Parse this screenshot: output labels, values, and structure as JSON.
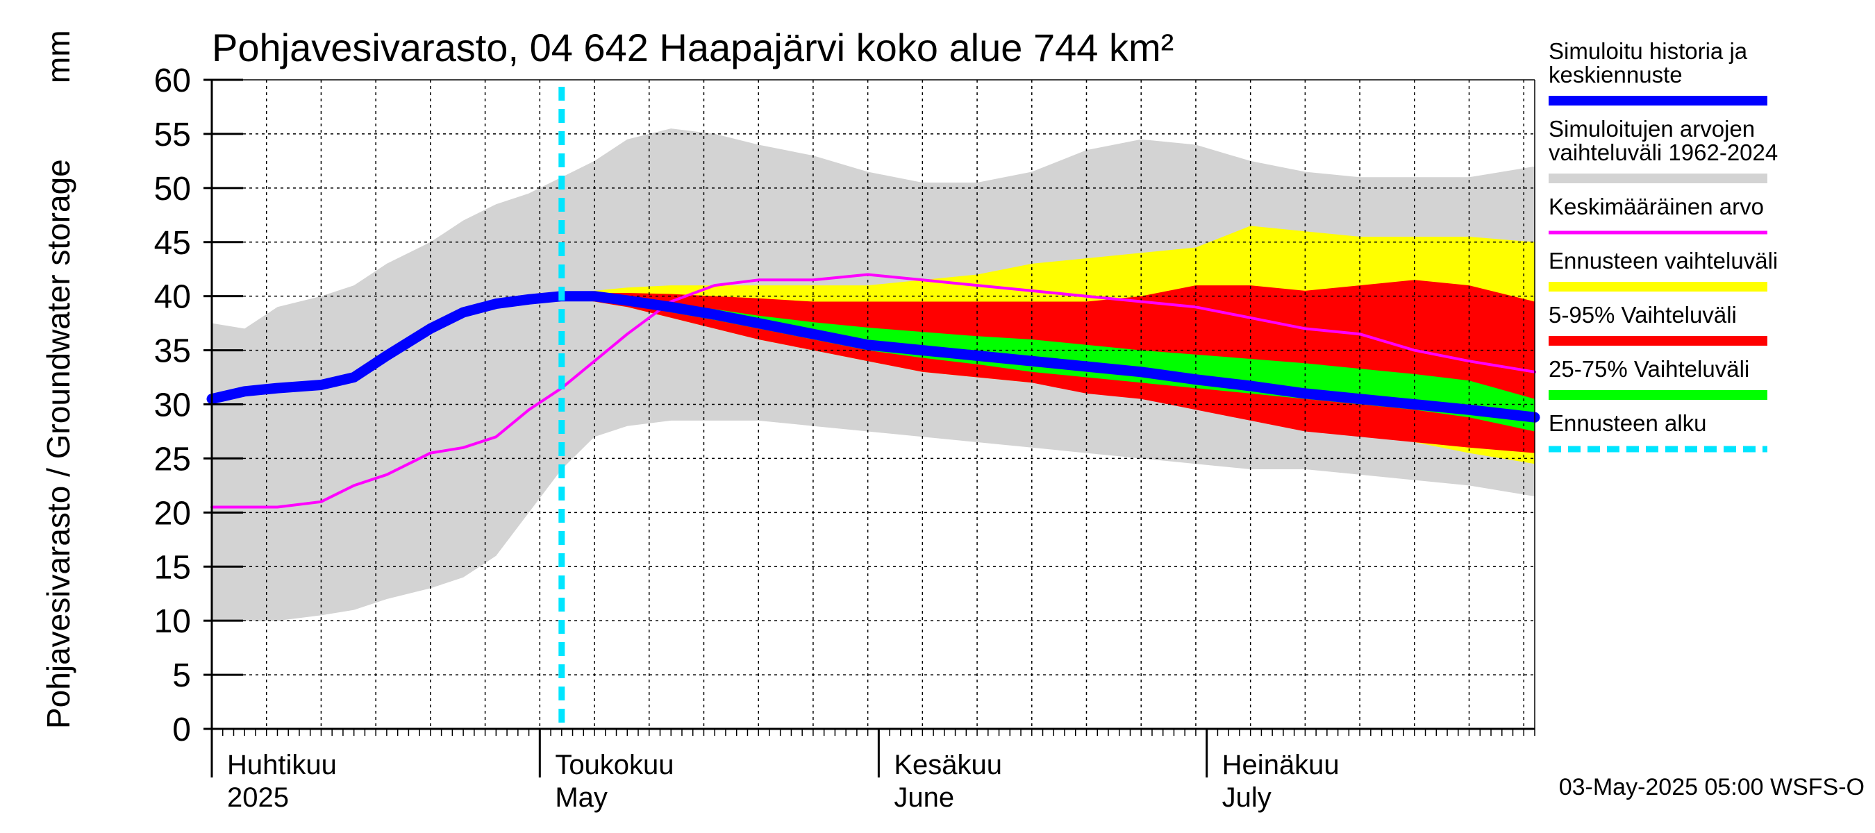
{
  "chart_data": {
    "type": "area",
    "title": "Pohjavesivarasto, 04 642 Haapajärvi koko alue 744 km²",
    "ylabel": "Pohjavesivarasto / Groundwater storage",
    "yunit": "mm",
    "ylim": [
      0,
      60
    ],
    "yticks": [
      0,
      5,
      10,
      15,
      20,
      25,
      30,
      35,
      40,
      45,
      50,
      55,
      60
    ],
    "x_day_range": [
      0,
      121
    ],
    "forecast_start_day": 32,
    "months": [
      {
        "fi": "Huhtikuu",
        "en": "2025",
        "start_day": 0
      },
      {
        "fi": "Toukokuu",
        "en": "May",
        "start_day": 30
      },
      {
        "fi": "Kesäkuu",
        "en": "June",
        "start_day": 61
      },
      {
        "fi": "Heinäkuu",
        "en": "July",
        "start_day": 91
      }
    ],
    "days": [
      0,
      3,
      6,
      10,
      13,
      16,
      20,
      23,
      26,
      29,
      32,
      35,
      38,
      42,
      46,
      50,
      55,
      60,
      65,
      70,
      75,
      80,
      85,
      90,
      95,
      100,
      105,
      110,
      115,
      121
    ],
    "series": [
      {
        "name": "Simuloitujen arvojen vaihteluväli 1962-2024",
        "kind": "band",
        "color": "#d3d3d3",
        "low": [
          10,
          10,
          10,
          10.5,
          11,
          12,
          13,
          14,
          16,
          20,
          24,
          27,
          28,
          28.5,
          28.5,
          28.5,
          28,
          27.5,
          27,
          26.5,
          26,
          25.5,
          25,
          24.5,
          24,
          24,
          23.5,
          23,
          22.5,
          21.5
        ],
        "high": [
          37.5,
          37,
          39,
          40,
          41,
          43,
          45,
          47,
          48.5,
          49.5,
          51,
          52.5,
          54.5,
          55.5,
          55,
          54,
          53,
          51.5,
          50.5,
          50.5,
          51.5,
          53.5,
          54.5,
          54,
          52.5,
          51.5,
          51,
          51,
          51,
          52
        ]
      },
      {
        "name": "Ennusteen vaihteluväli",
        "kind": "band",
        "color": "#ffff00",
        "days": [
          32,
          35,
          38,
          42,
          46,
          50,
          55,
          60,
          65,
          70,
          75,
          80,
          85,
          90,
          95,
          100,
          105,
          110,
          115,
          121
        ],
        "low": [
          40,
          39.5,
          39,
          38,
          37,
          36,
          35,
          34,
          33,
          32.5,
          32,
          31.5,
          31,
          30.5,
          29.5,
          28.5,
          27.5,
          26.5,
          25.5,
          24.5
        ],
        "high": [
          40.2,
          40.5,
          40.8,
          41,
          41,
          41,
          41,
          41,
          41.5,
          42,
          43,
          43.5,
          44,
          44.5,
          46.5,
          46,
          45.5,
          45.5,
          45.5,
          45
        ]
      },
      {
        "name": "5-95% Vaihteluväli",
        "kind": "band",
        "color": "#ff0000",
        "days": [
          32,
          35,
          38,
          42,
          46,
          50,
          55,
          60,
          65,
          70,
          75,
          80,
          85,
          90,
          95,
          100,
          105,
          110,
          115,
          121
        ],
        "low": [
          40,
          39.5,
          39,
          38,
          37,
          36,
          35,
          34,
          33,
          32.5,
          32,
          31,
          30.5,
          29.5,
          28.5,
          27.5,
          27,
          26.5,
          26,
          25.5
        ],
        "high": [
          40.2,
          40.3,
          40.3,
          40.2,
          40,
          39.8,
          39.5,
          39.5,
          39.5,
          39.5,
          39.5,
          39.5,
          40,
          41,
          41,
          40.5,
          41,
          41.5,
          41,
          39.5
        ]
      },
      {
        "name": "25-75% Vaihteluväli",
        "kind": "band",
        "color": "#00ff00",
        "days": [
          32,
          35,
          38,
          42,
          46,
          50,
          55,
          60,
          65,
          70,
          75,
          80,
          85,
          90,
          95,
          100,
          105,
          110,
          115,
          121
        ],
        "low": [
          40,
          39.8,
          39.3,
          38.5,
          37.8,
          37,
          36,
          35,
          34.3,
          33.7,
          33,
          32.5,
          32,
          31.5,
          31,
          30.5,
          30,
          29.5,
          28.8,
          27.5
        ],
        "high": [
          40.2,
          40.1,
          39.9,
          39.3,
          38.8,
          38.2,
          37.6,
          37.1,
          36.7,
          36.3,
          36,
          35.5,
          35,
          34.6,
          34.2,
          33.8,
          33.3,
          32.8,
          32.2,
          30.5
        ]
      },
      {
        "name": "Keskimääräinen arvo",
        "kind": "line",
        "color": "#ff00ff",
        "width": 4,
        "values": [
          20.5,
          20.5,
          20.5,
          21,
          22.5,
          23.5,
          25.5,
          26,
          27,
          29.5,
          31.5,
          34,
          36.5,
          39.5,
          41,
          41.5,
          41.5,
          42,
          41.5,
          41,
          40.5,
          40,
          39.5,
          39,
          38,
          37,
          36.5,
          35,
          34,
          33
        ]
      },
      {
        "name": "Simuloitu historia ja keskiennuste",
        "kind": "line",
        "color": "#0000ff",
        "width": 15,
        "values": [
          30.5,
          31.2,
          31.5,
          31.8,
          32.5,
          34.5,
          37,
          38.5,
          39.3,
          39.7,
          40,
          40,
          39.6,
          39,
          38.3,
          37.5,
          36.5,
          35.5,
          35,
          34.5,
          34,
          33.5,
          33,
          32.3,
          31.7,
          31,
          30.5,
          30,
          29.5,
          28.8
        ]
      }
    ],
    "legend": [
      {
        "label": [
          "Simuloitu historia ja",
          "keskiennuste"
        ],
        "color": "#0000ff",
        "style": "solid",
        "width": 14
      },
      {
        "label": [
          "Simuloitujen arvojen",
          "vaihteluväli 1962-2024"
        ],
        "color": "#d3d3d3",
        "style": "solid",
        "width": 14
      },
      {
        "label": [
          "Keskimääräinen arvo"
        ],
        "color": "#ff00ff",
        "style": "solid",
        "width": 5
      },
      {
        "label": [
          "Ennusteen vaihteluväli"
        ],
        "color": "#ffff00",
        "style": "solid",
        "width": 14
      },
      {
        "label": [
          "5-95% Vaihteluväli"
        ],
        "color": "#ff0000",
        "style": "solid",
        "width": 14
      },
      {
        "label": [
          "25-75% Vaihteluväli"
        ],
        "color": "#00ff00",
        "style": "solid",
        "width": 14
      },
      {
        "label": [
          "Ennusteen alku"
        ],
        "color": "#00e5ff",
        "style": "dashed",
        "width": 9
      }
    ],
    "timestamp": "03-May-2025 05:00 WSFS-O"
  }
}
